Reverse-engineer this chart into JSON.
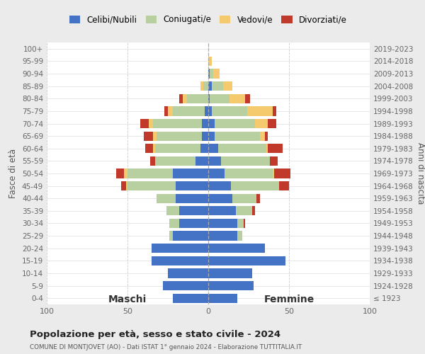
{
  "age_groups": [
    "100+",
    "95-99",
    "90-94",
    "85-89",
    "80-84",
    "75-79",
    "70-74",
    "65-69",
    "60-64",
    "55-59",
    "50-54",
    "45-49",
    "40-44",
    "35-39",
    "30-34",
    "25-29",
    "20-24",
    "15-19",
    "10-14",
    "5-9",
    "0-4"
  ],
  "birth_years": [
    "≤ 1923",
    "1924-1928",
    "1929-1933",
    "1934-1938",
    "1939-1943",
    "1944-1948",
    "1949-1953",
    "1954-1958",
    "1959-1963",
    "1964-1968",
    "1969-1973",
    "1974-1978",
    "1979-1983",
    "1984-1988",
    "1989-1993",
    "1994-1998",
    "1999-2003",
    "2004-2008",
    "2009-2013",
    "2014-2018",
    "2019-2023"
  ],
  "colors": {
    "celibi": "#4472c4",
    "coniugati": "#b8cfa0",
    "vedovi": "#f5c96e",
    "divorziati": "#c0392b"
  },
  "maschi": {
    "celibi": [
      0,
      0,
      0,
      0,
      0,
      2,
      4,
      4,
      5,
      8,
      22,
      20,
      20,
      18,
      18,
      22,
      35,
      35,
      25,
      28,
      22
    ],
    "coniugati": [
      0,
      0,
      0,
      3,
      13,
      20,
      30,
      28,
      28,
      25,
      28,
      30,
      12,
      8,
      6,
      2,
      0,
      0,
      0,
      0,
      0
    ],
    "vedovi": [
      0,
      0,
      0,
      2,
      3,
      3,
      3,
      2,
      1,
      0,
      2,
      1,
      0,
      0,
      0,
      0,
      0,
      0,
      0,
      0,
      0
    ],
    "divorziati": [
      0,
      0,
      0,
      0,
      2,
      2,
      5,
      6,
      5,
      3,
      5,
      3,
      0,
      0,
      0,
      0,
      0,
      0,
      0,
      0,
      0
    ]
  },
  "femmine": {
    "celibi": [
      0,
      0,
      1,
      2,
      1,
      2,
      4,
      4,
      6,
      8,
      10,
      14,
      15,
      17,
      18,
      18,
      35,
      48,
      27,
      28,
      18
    ],
    "coniugati": [
      0,
      0,
      2,
      7,
      12,
      22,
      25,
      28,
      30,
      30,
      30,
      30,
      15,
      10,
      4,
      3,
      0,
      0,
      0,
      0,
      0
    ],
    "vedovi": [
      0,
      2,
      4,
      6,
      10,
      16,
      8,
      3,
      1,
      0,
      1,
      0,
      0,
      0,
      0,
      0,
      0,
      0,
      0,
      0,
      0
    ],
    "divorziati": [
      0,
      0,
      0,
      0,
      3,
      2,
      5,
      2,
      9,
      5,
      10,
      6,
      2,
      2,
      1,
      0,
      0,
      0,
      0,
      0,
      0
    ]
  },
  "title": "Popolazione per età, sesso e stato civile - 2024",
  "subtitle": "COMUNE DI MONTJOVET (AO) - Dati ISTAT 1° gennaio 2024 - Elaborazione TUTTITALIA.IT",
  "xlabel_left": "Maschi",
  "xlabel_right": "Femmine",
  "ylabel_left": "Fasce di età",
  "ylabel_right": "Anni di nascita",
  "xlim": 100,
  "legend_labels": [
    "Celibi/Nubili",
    "Coniugati/e",
    "Vedovi/e",
    "Divorziati/e"
  ],
  "bg_color": "#ebebeb",
  "plot_bg": "#ffffff"
}
